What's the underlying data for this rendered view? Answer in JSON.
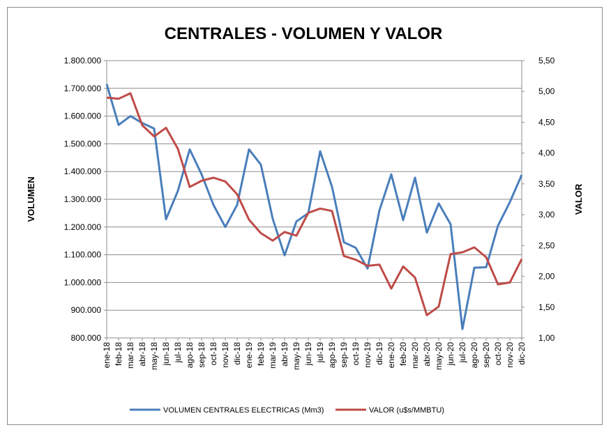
{
  "chart_data": {
    "type": "line",
    "title": "CENTRALES - VOLUMEN Y VALOR",
    "y_left_label": "VOLUMEN",
    "y_right_label": "VALOR",
    "y_left_range": [
      800000,
      1800000
    ],
    "y_right_range": [
      1.0,
      5.5
    ],
    "y_left_ticks": [
      "800.000",
      "900.000",
      "1.000.000",
      "1.100.000",
      "1.200.000",
      "1.300.000",
      "1.400.000",
      "1.500.000",
      "1.600.000",
      "1.700.000",
      "1.800.000"
    ],
    "y_right_ticks": [
      "1,00",
      "1,50",
      "2,00",
      "2,50",
      "3,00",
      "3,50",
      "4,00",
      "4,50",
      "5,00",
      "5,50"
    ],
    "grid": true,
    "legend_position": "bottom",
    "categories": [
      "ene-18",
      "feb-18",
      "mar-18",
      "abr-18",
      "may-18",
      "jun-18",
      "jul-18",
      "ago-18",
      "sep-18",
      "oct-18",
      "nov-18",
      "dic-18",
      "ene-19",
      "feb-19",
      "mar-19",
      "abr-19",
      "may-19",
      "jun-19",
      "jul-19",
      "ago-19",
      "sep-19",
      "oct-19",
      "nov-19",
      "dic-19",
      "ene-20",
      "feb-20",
      "mar-20",
      "abr-20",
      "may-20",
      "jun-20",
      "jul-20",
      "ago-20",
      "sep-20",
      "oct-20",
      "nov-20",
      "dic-20"
    ],
    "series": [
      {
        "name": "VOLUMEN CENTRALES  ELECTRICAS (Mm3)",
        "axis": "left",
        "color": "#4a7ebb",
        "values": [
          1715000,
          1568000,
          1600000,
          1575000,
          1555000,
          1228000,
          1330000,
          1480000,
          1390000,
          1280000,
          1200000,
          1280000,
          1480000,
          1425000,
          1230000,
          1098000,
          1220000,
          1250000,
          1473000,
          1345000,
          1145000,
          1125000,
          1050000,
          1260000,
          1390000,
          1225000,
          1378000,
          1180000,
          1285000,
          1210000,
          832000,
          1053000,
          1055000,
          1205000,
          1290000,
          1388000
        ]
      },
      {
        "name": "VALOR (u$s/MMBTU)",
        "axis": "right",
        "color": "#be4b48",
        "values": [
          4.9,
          4.88,
          4.97,
          4.45,
          4.27,
          4.41,
          4.07,
          3.45,
          3.55,
          3.6,
          3.54,
          3.33,
          2.92,
          2.7,
          2.58,
          2.72,
          2.66,
          3.03,
          3.1,
          3.06,
          2.33,
          2.27,
          2.17,
          2.19,
          1.8,
          2.16,
          1.98,
          1.37,
          1.51,
          2.36,
          2.39,
          2.47,
          2.31,
          1.87,
          1.9,
          2.28
        ]
      }
    ]
  }
}
